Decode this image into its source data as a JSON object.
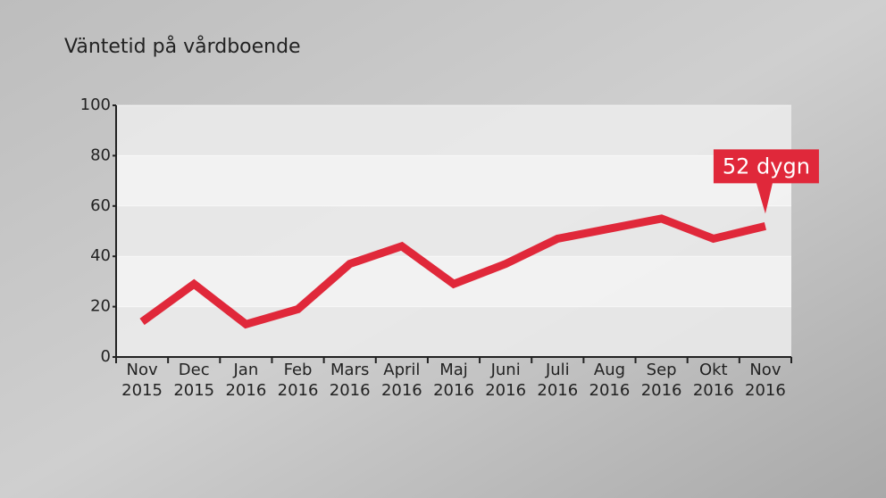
{
  "chart_data": {
    "type": "line",
    "title": "Väntetid på vårdboende",
    "categories": [
      [
        "Nov",
        "2015"
      ],
      [
        "Dec",
        "2015"
      ],
      [
        "Jan",
        "2016"
      ],
      [
        "Feb",
        "2016"
      ],
      [
        "Mars",
        "2016"
      ],
      [
        "April",
        "2016"
      ],
      [
        "Maj",
        "2016"
      ],
      [
        "Juni",
        "2016"
      ],
      [
        "Juli",
        "2016"
      ],
      [
        "Aug",
        "2016"
      ],
      [
        "Sep",
        "2016"
      ],
      [
        "Okt",
        "2016"
      ],
      [
        "Nov",
        "2016"
      ]
    ],
    "values": [
      14,
      29,
      13,
      19,
      37,
      44,
      29,
      37,
      47,
      51,
      55,
      47,
      52
    ],
    "color": "#e0283a",
    "annotation": "52 dygn",
    "ylim": [
      0,
      100
    ],
    "yticks": [
      0,
      20,
      40,
      60,
      80,
      100
    ],
    "grid": true
  }
}
